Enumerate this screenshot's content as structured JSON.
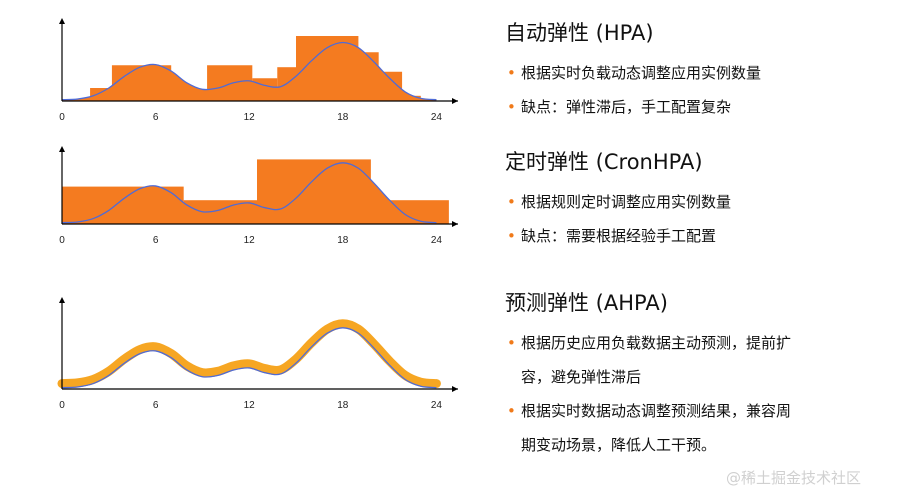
{
  "chart_data": [
    {
      "type": "area",
      "x_ticks": [
        0,
        6,
        12,
        18,
        24
      ],
      "xlim": [
        0,
        25
      ],
      "ylim": [
        0,
        1
      ],
      "demand_curve": {
        "x": [
          0,
          1,
          2,
          3,
          4,
          5,
          6,
          7,
          8,
          9,
          10,
          11,
          12,
          13,
          14,
          15,
          16,
          17,
          18,
          19,
          20,
          21,
          22,
          23,
          24
        ],
        "y": [
          0.02,
          0.03,
          0.08,
          0.2,
          0.38,
          0.52,
          0.56,
          0.46,
          0.28,
          0.18,
          0.2,
          0.28,
          0.31,
          0.24,
          0.22,
          0.38,
          0.62,
          0.82,
          0.9,
          0.82,
          0.6,
          0.35,
          0.14,
          0.04,
          0.02
        ]
      },
      "hpa_steps": [
        {
          "x0": 0,
          "x1": 1.8,
          "y": 0.03
        },
        {
          "x0": 1.8,
          "x1": 3.2,
          "y": 0.2
        },
        {
          "x0": 3.2,
          "x1": 7.0,
          "y": 0.55
        },
        {
          "x0": 7.0,
          "x1": 9.3,
          "y": 0.03
        },
        {
          "x0": 9.3,
          "x1": 12.2,
          "y": 0.55
        },
        {
          "x0": 12.2,
          "x1": 13.8,
          "y": 0.35
        },
        {
          "x0": 13.8,
          "x1": 15.0,
          "y": 0.52
        },
        {
          "x0": 15.0,
          "x1": 19.0,
          "y": 1.0
        },
        {
          "x0": 19.0,
          "x1": 20.3,
          "y": 0.75
        },
        {
          "x0": 20.3,
          "x1": 21.8,
          "y": 0.45
        },
        {
          "x0": 21.8,
          "x1": 23.0,
          "y": 0.08
        },
        {
          "x0": 23.0,
          "x1": 24.0,
          "y": 0.03
        }
      ]
    },
    {
      "type": "area",
      "x_ticks": [
        0,
        6,
        12,
        18,
        24
      ],
      "xlim": [
        0,
        25
      ],
      "ylim": [
        0,
        1
      ],
      "demand_curve": {
        "x": [
          0,
          1,
          2,
          3,
          4,
          5,
          6,
          7,
          8,
          9,
          10,
          11,
          12,
          13,
          14,
          15,
          16,
          17,
          18,
          19,
          20,
          21,
          22,
          23,
          24
        ],
        "y": [
          0.02,
          0.03,
          0.08,
          0.2,
          0.38,
          0.52,
          0.56,
          0.46,
          0.28,
          0.18,
          0.2,
          0.28,
          0.31,
          0.24,
          0.22,
          0.38,
          0.62,
          0.82,
          0.9,
          0.82,
          0.6,
          0.35,
          0.14,
          0.04,
          0.02
        ]
      },
      "cron_steps": [
        {
          "x0": 0,
          "x1": 7.8,
          "y": 0.55
        },
        {
          "x0": 7.8,
          "x1": 12.5,
          "y": 0.35
        },
        {
          "x0": 12.5,
          "x1": 19.8,
          "y": 0.95
        },
        {
          "x0": 19.8,
          "x1": 24.8,
          "y": 0.35
        }
      ]
    },
    {
      "type": "area",
      "x_ticks": [
        0,
        6,
        12,
        18,
        24
      ],
      "xlim": [
        0,
        25
      ],
      "ylim": [
        0,
        1
      ],
      "demand_curve": {
        "x": [
          0,
          1,
          2,
          3,
          4,
          5,
          6,
          7,
          8,
          9,
          10,
          11,
          12,
          13,
          14,
          15,
          16,
          17,
          18,
          19,
          20,
          21,
          22,
          23,
          24
        ],
        "y": [
          0.02,
          0.03,
          0.08,
          0.2,
          0.38,
          0.52,
          0.56,
          0.46,
          0.28,
          0.18,
          0.2,
          0.28,
          0.31,
          0.24,
          0.22,
          0.38,
          0.62,
          0.82,
          0.9,
          0.82,
          0.6,
          0.35,
          0.14,
          0.04,
          0.02
        ]
      },
      "prediction_band_width": 0.06
    }
  ],
  "colors": {
    "fill": "#f47b20",
    "band": "#f6a623",
    "curve": "#4f6bd6",
    "axis": "#000000",
    "bullet": "#f07a1a"
  },
  "sections": [
    {
      "title": "自动弹性 (HPA)",
      "bullets": [
        "根据实时负载动态调整应用实例数量",
        "缺点：弹性滞后，手工配置复杂"
      ]
    },
    {
      "title": "定时弹性 (CronHPA)",
      "bullets": [
        "根据规则定时调整应用实例数量",
        "缺点：需要根据经验手工配置"
      ]
    },
    {
      "title": "预测弹性 (AHPA)",
      "bullets": [
        "根据历史应用负载数据主动预测，提前扩",
        "容，避免弹性滞后",
        "根据实时数据动态调整预测结果，兼容周",
        "期变动场景，降低人工干预。"
      ]
    }
  ],
  "bullet_char": "•",
  "watermark": "@稀土掘金技术社区"
}
